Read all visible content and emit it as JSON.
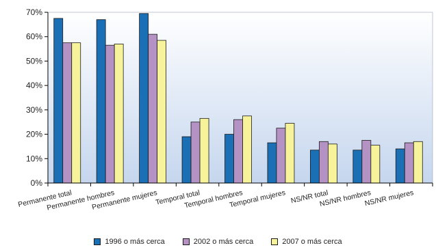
{
  "chart_data": {
    "type": "bar",
    "categories": [
      "Permanente total",
      "Permanente hombres",
      "Permanente mujeres",
      "Temporal total",
      "Temporal hombres",
      "Temporal mujeres",
      "NS/NR total",
      "NS/NR hombres",
      "NS/NR mujeres"
    ],
    "series": [
      {
        "name": "1996 o más cerca",
        "color": "#1a6fb5",
        "values": [
          67.5,
          67,
          69.5,
          19,
          20,
          16.5,
          13.5,
          13.5,
          14
        ]
      },
      {
        "name": "2002 o más cerca",
        "color": "#b592c4",
        "values": [
          57.5,
          56.5,
          61,
          25,
          26,
          22.5,
          17,
          17.5,
          16.5
        ]
      },
      {
        "name": "2007 o más cerca",
        "color": "#f6f39a",
        "values": [
          57.5,
          57,
          58.5,
          26.5,
          27.5,
          24.5,
          16,
          15.5,
          17
        ]
      }
    ],
    "ylim": [
      0,
      70
    ],
    "yticks": [
      "0%",
      "10%",
      "20%",
      "30%",
      "40%",
      "50%",
      "60%",
      "70%"
    ],
    "title": "",
    "xlabel": "",
    "ylabel": "",
    "grid": false,
    "legend_position": "bottom",
    "background_gradient": [
      "#ffffff",
      "#c5d6ee"
    ]
  }
}
